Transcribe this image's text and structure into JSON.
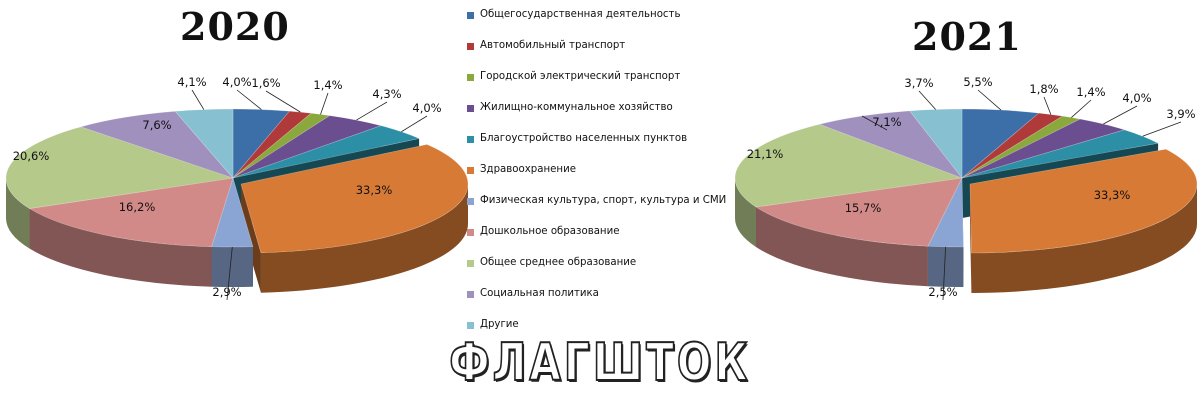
{
  "chart_data": [
    {
      "type": "pie",
      "title": "2020",
      "series": [
        {
          "name": "Общегосударственная деятельность",
          "value": 4.0,
          "label": "4,0%"
        },
        {
          "name": "Автомобильный транспорт",
          "value": 1.6,
          "label": "1,6%"
        },
        {
          "name": "Городской электрический транспорт",
          "value": 1.4,
          "label": "1,4%"
        },
        {
          "name": "Жилищно-коммунальное хозяйство",
          "value": 4.3,
          "label": "4,3%"
        },
        {
          "name": "Благоустройство населенных пунктов",
          "value": 4.0,
          "label": "4,0%"
        },
        {
          "name": "Здравоохранение",
          "value": 33.3,
          "label": "33,3%"
        },
        {
          "name": "Физическая культура, спорт, культура и СМИ",
          "value": 2.9,
          "label": "2,9%"
        },
        {
          "name": "Дошкольное образование",
          "value": 16.2,
          "label": "16,2%"
        },
        {
          "name": "Общее среднее образование",
          "value": 20.6,
          "label": "20,6%"
        },
        {
          "name": "Социальная политика",
          "value": 7.6,
          "label": "7,6%"
        },
        {
          "name": "Другие",
          "value": 4.1,
          "label": "4,1%"
        }
      ]
    },
    {
      "type": "pie",
      "title": "2021",
      "series": [
        {
          "name": "Общегосударственная деятельность",
          "value": 5.5,
          "label": "5,5%"
        },
        {
          "name": "Автомобильный транспорт",
          "value": 1.8,
          "label": "1,8%"
        },
        {
          "name": "Городской электрический транспорт",
          "value": 1.4,
          "label": "1,4%"
        },
        {
          "name": "Жилищно-коммунальное хозяйство",
          "value": 4.0,
          "label": "4,0%"
        },
        {
          "name": "Благоустройство населенных пунктов",
          "value": 3.9,
          "label": "3,9%"
        },
        {
          "name": "Здравоохранение",
          "value": 33.3,
          "label": "33,3%"
        },
        {
          "name": "Физическая культура, спорт, культура и СМИ",
          "value": 2.5,
          "label": "2,5%"
        },
        {
          "name": "Дошкольное образование",
          "value": 15.7,
          "label": "15,7%"
        },
        {
          "name": "Общее среднее образование",
          "value": 21.1,
          "label": "21,1%"
        },
        {
          "name": "Социальная политика",
          "value": 7.1,
          "label": "7,1%"
        },
        {
          "name": "Другие",
          "value": 3.7,
          "label": "3,7%"
        }
      ]
    }
  ],
  "legend": [
    {
      "label": "Общегосударственная деятельность",
      "color": "#3c6ea7"
    },
    {
      "label": "Автомобильный транспорт",
      "color": "#b0393a"
    },
    {
      "label": "Городской электрический транспорт",
      "color": "#8aa83c"
    },
    {
      "label": "Жилищно-коммунальное хозяйство",
      "color": "#6b4e8f"
    },
    {
      "label": "Благоустройство населенных пунктов",
      "color": "#2c8fa6"
    },
    {
      "label": "Здравоохранение",
      "color": "#d77a36"
    },
    {
      "label": "Физическая культура, спорт, культура и СМИ",
      "color": "#8aa5d3"
    },
    {
      "label": "Дошкольное образование",
      "color": "#d28a88"
    },
    {
      "label": "Общее среднее образование",
      "color": "#b5c98a"
    },
    {
      "label": "Социальная политика",
      "color": "#a090be"
    },
    {
      "label": "Другие",
      "color": "#86c0d1"
    }
  ],
  "watermark": "ФЛАГШТОК"
}
